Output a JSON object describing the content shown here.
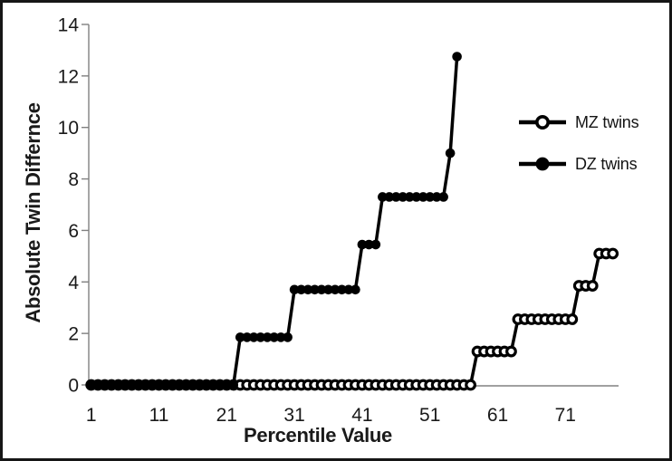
{
  "figure": {
    "background": "#ffffff",
    "frame_color": "#161616"
  },
  "chart_data": {
    "type": "line",
    "title": "",
    "xlabel": "Percentile Value",
    "ylabel": "Absolute Twin Differnce",
    "x_ticks": [
      1,
      11,
      21,
      31,
      41,
      51,
      61,
      71
    ],
    "y_ticks": [
      0,
      2,
      4,
      6,
      8,
      10,
      12,
      14
    ],
    "xlim": [
      1,
      79
    ],
    "ylim": [
      0,
      14
    ],
    "grid": false,
    "legend_position": "upper-right",
    "colors": {
      "series": "#000000",
      "axis": "#808080",
      "tick_text": "#1a1a1a"
    },
    "series": [
      {
        "name": "MZ twins",
        "marker": "open-circle",
        "color": "#000000",
        "runs": [
          {
            "from": 1,
            "to": 57,
            "value": 0
          },
          {
            "from": 58,
            "to": 63,
            "value": 1.3
          },
          {
            "from": 64,
            "to": 72,
            "value": 2.55
          },
          {
            "from": 73,
            "to": 75,
            "value": 3.85
          },
          {
            "from": 76,
            "to": 78,
            "value": 5.1
          }
        ]
      },
      {
        "name": "DZ twins",
        "marker": "filled-circle",
        "color": "#000000",
        "runs": [
          {
            "from": 1,
            "to": 22,
            "value": 0
          },
          {
            "from": 23,
            "to": 30,
            "value": 1.85
          },
          {
            "from": 31,
            "to": 40,
            "value": 3.7
          },
          {
            "from": 41,
            "to": 43,
            "value": 5.45
          },
          {
            "from": 44,
            "to": 53,
            "value": 7.3
          },
          {
            "from": 54,
            "to": 54,
            "value": 9.0
          },
          {
            "from": 55,
            "to": 55,
            "value": 12.75
          }
        ]
      }
    ]
  }
}
